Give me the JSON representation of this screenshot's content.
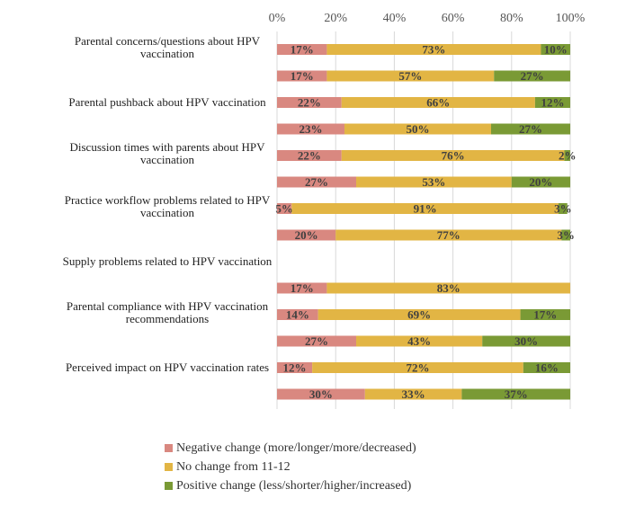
{
  "chart_data": {
    "type": "bar",
    "stacked": true,
    "orientation": "horizontal",
    "percent_scale": true,
    "xlim": [
      0,
      100
    ],
    "x_ticks": [
      "0%",
      "20%",
      "40%",
      "60%",
      "80%",
      "100%"
    ],
    "categories": [
      "Parental concerns/questions about HPV vaccination",
      "Parental pushback about HPV vaccination",
      "Discussion times with parents about HPV vaccination",
      "Practice workflow problems related to HPV vaccination",
      "Supply problems related to HPV vaccination",
      "Parental compliance with HPV vaccination recommendations",
      "Perceived impact on HPV vaccination rates"
    ],
    "bars": [
      {
        "values": [
          17,
          73,
          10
        ],
        "labels": [
          "17%",
          "73%",
          "10%"
        ]
      },
      {
        "values": [
          17,
          57,
          27
        ],
        "labels": [
          "17%",
          "57%",
          "27%"
        ]
      },
      {
        "values": [
          22,
          66,
          12
        ],
        "labels": [
          "22%",
          "66%",
          "12%"
        ]
      },
      {
        "values": [
          23,
          50,
          27
        ],
        "labels": [
          "23%",
          "50%",
          "27%"
        ]
      },
      {
        "values": [
          22,
          76,
          2
        ],
        "labels": [
          "22%",
          "76%",
          "2%"
        ]
      },
      {
        "values": [
          27,
          53,
          20
        ],
        "labels": [
          "27%",
          "53%",
          "20%"
        ]
      },
      {
        "values": [
          5,
          91,
          3
        ],
        "labels": [
          "5%",
          "91%",
          "3%"
        ]
      },
      {
        "values": [
          20,
          77,
          3
        ],
        "labels": [
          "20%",
          "77%",
          "3%"
        ]
      },
      {
        "values": [
          0,
          0,
          0
        ],
        "labels": [
          "",
          "",
          ""
        ]
      },
      {
        "values": [
          17,
          83,
          0
        ],
        "labels": [
          "17%",
          "83%",
          ""
        ]
      },
      {
        "values": [
          14,
          69,
          17
        ],
        "labels": [
          "14%",
          "69%",
          "17%"
        ]
      },
      {
        "values": [
          27,
          43,
          30
        ],
        "labels": [
          "27%",
          "43%",
          "30%"
        ]
      },
      {
        "values": [
          12,
          72,
          16
        ],
        "labels": [
          "12%",
          "72%",
          "16%"
        ]
      },
      {
        "values": [
          30,
          33,
          37
        ],
        "labels": [
          "30%",
          "33%",
          "37%"
        ]
      }
    ],
    "series": [
      {
        "name": "Negative change (more/longer/more/decreased)",
        "color": "#d98880"
      },
      {
        "name": "No change from 11-12",
        "color": "#e2b544"
      },
      {
        "name": "Positive change (less/shorter/higher/increased)",
        "color": "#7a9a35"
      }
    ],
    "legend_position": "bottom",
    "grid": true
  }
}
